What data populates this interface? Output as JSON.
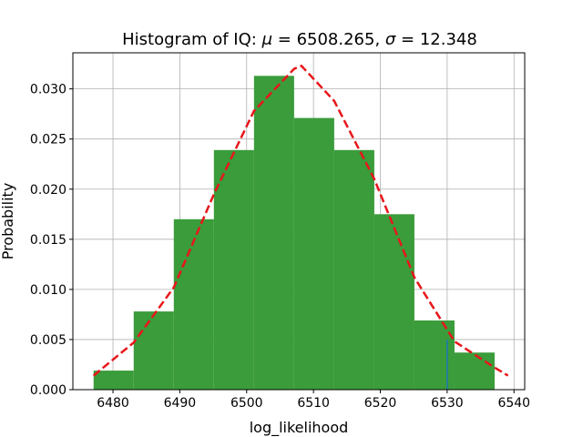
{
  "chart_data": {
    "type": "bar",
    "title_prefix": "Histogram of IQ",
    "title_math": "μ = 6508.265,  σ = 12.348",
    "title_parts": {
      "lead": "Histogram of IQ",
      "colon": ": ",
      "mu": "μ",
      "mu_eq": " = 6508.265,  ",
      "sigma": "σ",
      "sigma_eq": " = 12.348"
    },
    "xlabel": "log_likelihood",
    "ylabel": "Probability",
    "xlim": [
      6474.0,
      6541.6
    ],
    "ylim": [
      0.0,
      0.0336
    ],
    "xticks": [
      6480,
      6490,
      6500,
      6510,
      6520,
      6530,
      6540
    ],
    "xtick_labels": [
      "6480",
      "6490",
      "6500",
      "6510",
      "6520",
      "6530",
      "6540"
    ],
    "yticks": [
      0.0,
      0.005,
      0.01,
      0.015,
      0.02,
      0.025,
      0.03
    ],
    "ytick_labels": [
      "0.000",
      "0.005",
      "0.010",
      "0.015",
      "0.020",
      "0.025",
      "0.030"
    ],
    "grid": true,
    "bin_edges": [
      6477.1,
      6483.1,
      6489.1,
      6495.1,
      6501.1,
      6507.1,
      6513.1,
      6519.1,
      6525.1,
      6531.1,
      6537.1
    ],
    "values": [
      0.0019,
      0.0078,
      0.017,
      0.0239,
      0.0313,
      0.0271,
      0.0239,
      0.0175,
      0.0069,
      0.0037
    ],
    "bar_color": "#3a9c3a",
    "series": [
      {
        "kind": "normal-pdf-line",
        "x": [
          6477.1,
          6483.1,
          6489.1,
          6495.1,
          6501.1,
          6507.1,
          6508.2,
          6513.1,
          6519.1,
          6525.1,
          6531.1,
          6537.1,
          6539.1
        ],
        "values": [
          0.0014,
          0.0047,
          0.0102,
          0.0195,
          0.0278,
          0.032,
          0.0323,
          0.0288,
          0.021,
          0.0112,
          0.0048,
          0.0022,
          0.0014
        ],
        "color": "#e8161a",
        "style": "dashed"
      }
    ],
    "marker_line": {
      "x": 6530,
      "y_top": 0.005,
      "color": "#1f77b4"
    }
  }
}
